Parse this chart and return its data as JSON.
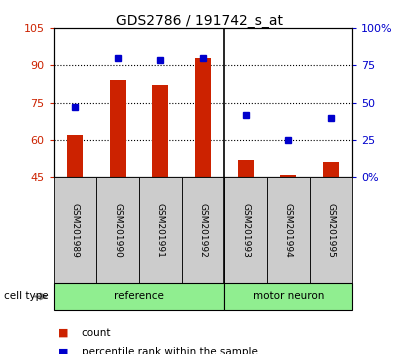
{
  "title": "GDS2786 / 191742_s_at",
  "samples": [
    "GSM201989",
    "GSM201990",
    "GSM201991",
    "GSM201992",
    "GSM201993",
    "GSM201994",
    "GSM201995"
  ],
  "count_values": [
    62,
    84,
    82,
    93,
    52,
    46,
    51
  ],
  "percentile_values": [
    47,
    80,
    79,
    80,
    42,
    25,
    40
  ],
  "ylim_left": [
    45,
    105
  ],
  "ylim_right": [
    0,
    100
  ],
  "yticks_left": [
    45,
    60,
    75,
    90,
    105
  ],
  "yticks_right": [
    0,
    25,
    50,
    75,
    100
  ],
  "yticklabels_right": [
    "0%",
    "25",
    "50",
    "75",
    "100%"
  ],
  "bar_color": "#cc2200",
  "dot_color": "#0000cc",
  "bar_bottom": 45,
  "sample_bg_color": "#cccccc",
  "ref_group_color": "#90ee90",
  "motor_group_color": "#90ee90",
  "n_reference": 4,
  "n_motor": 3,
  "legend_count_label": "count",
  "legend_pct_label": "percentile rank within the sample"
}
